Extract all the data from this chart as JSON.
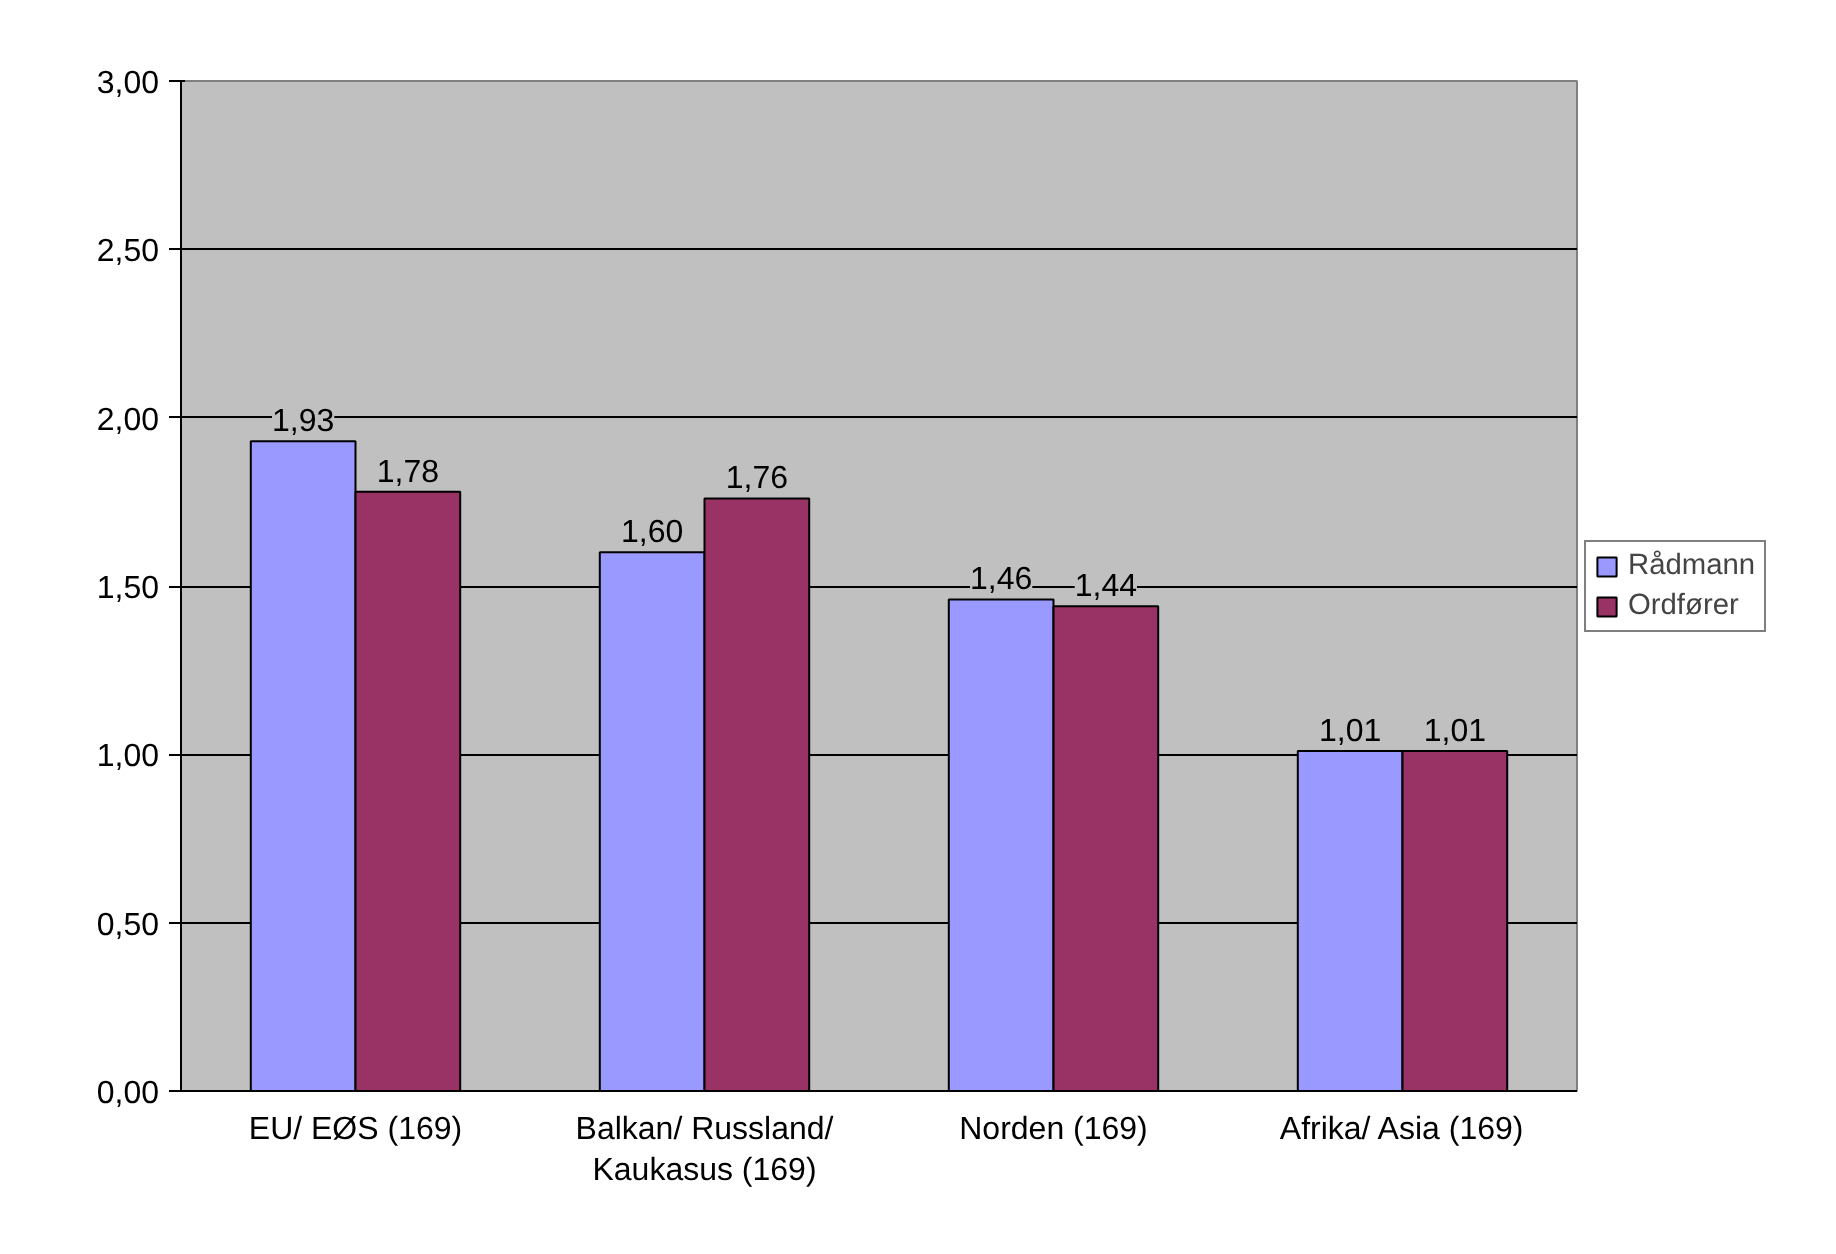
{
  "chart_data": {
    "type": "bar",
    "categories": [
      "EU/ EØS (169)",
      "Balkan/ Russland/ Kaukasus (169)",
      "Norden (169)",
      "Afrika/ Asia (169)"
    ],
    "series": [
      {
        "name": "Rådmann",
        "color": "#9999ff",
        "values": [
          1.93,
          1.6,
          1.46,
          1.01
        ],
        "value_labels": [
          "1,93",
          "1,60",
          "1,46",
          "1,01"
        ]
      },
      {
        "name": "Ordfører",
        "color": "#993366",
        "values": [
          1.78,
          1.76,
          1.44,
          1.01
        ],
        "value_labels": [
          "1,78",
          "1,76",
          "1,44",
          "1,01"
        ]
      }
    ],
    "ylim": [
      0,
      3
    ],
    "yticks": [
      {
        "value": 0,
        "label": "0,00"
      },
      {
        "value": 0.5,
        "label": "0,50"
      },
      {
        "value": 1,
        "label": "1,00"
      },
      {
        "value": 1.5,
        "label": "1,50"
      },
      {
        "value": 2,
        "label": "2,00"
      },
      {
        "value": 2.5,
        "label": "2,50"
      },
      {
        "value": 3,
        "label": "3,00"
      }
    ],
    "grid": "y",
    "legend": "right"
  }
}
